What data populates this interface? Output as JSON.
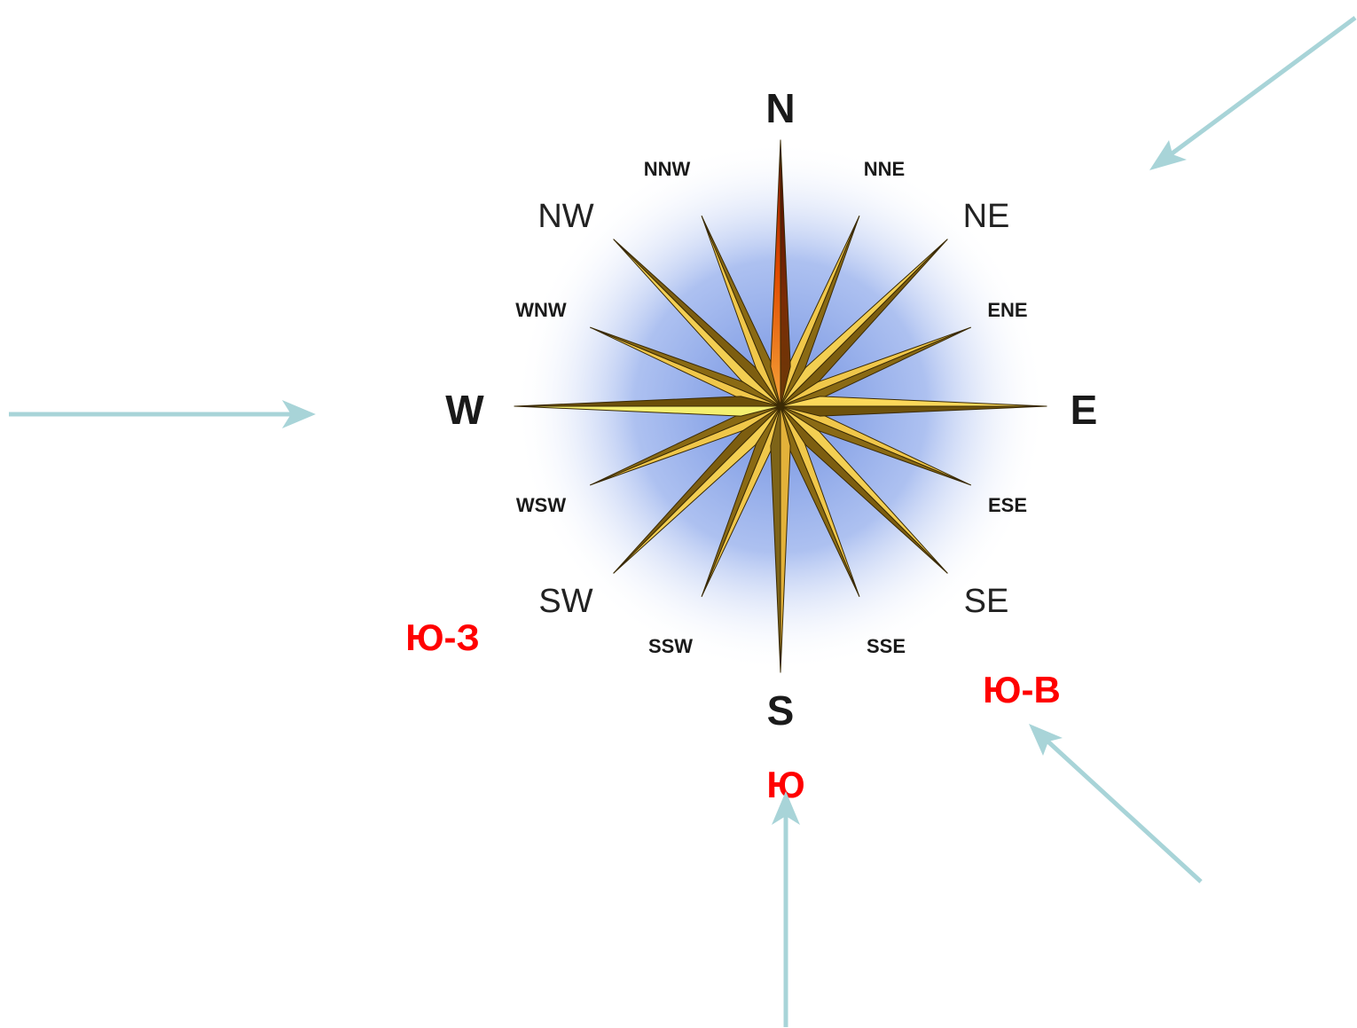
{
  "compass": {
    "cardinal": {
      "n": "N",
      "e": "E",
      "s": "S",
      "w": "W"
    },
    "intercardinal": {
      "ne": "NE",
      "se": "SE",
      "sw": "SW",
      "nw": "NW"
    },
    "minor": {
      "nne": "NNE",
      "ene": "ENE",
      "ese": "ESE",
      "sse": "SSE",
      "ssw": "SSW",
      "wsw": "WSW",
      "wnw": "WNW",
      "nnw": "NNW"
    }
  },
  "russian_labels": {
    "south_west": "Ю-З",
    "south": "Ю",
    "south_east": "Ю-В"
  },
  "colors": {
    "arrow": "#a8d4d8",
    "russian_label": "#ff0000",
    "glow": "#7f9fe6",
    "north_tip": "#b01e00",
    "star_light": "#f2c94a",
    "star_dark": "#7a5c10"
  },
  "arrows_meaning": [
    "wind-from-west",
    "wind-from-north-east",
    "wind-from-south",
    "wind-from-south-east"
  ]
}
